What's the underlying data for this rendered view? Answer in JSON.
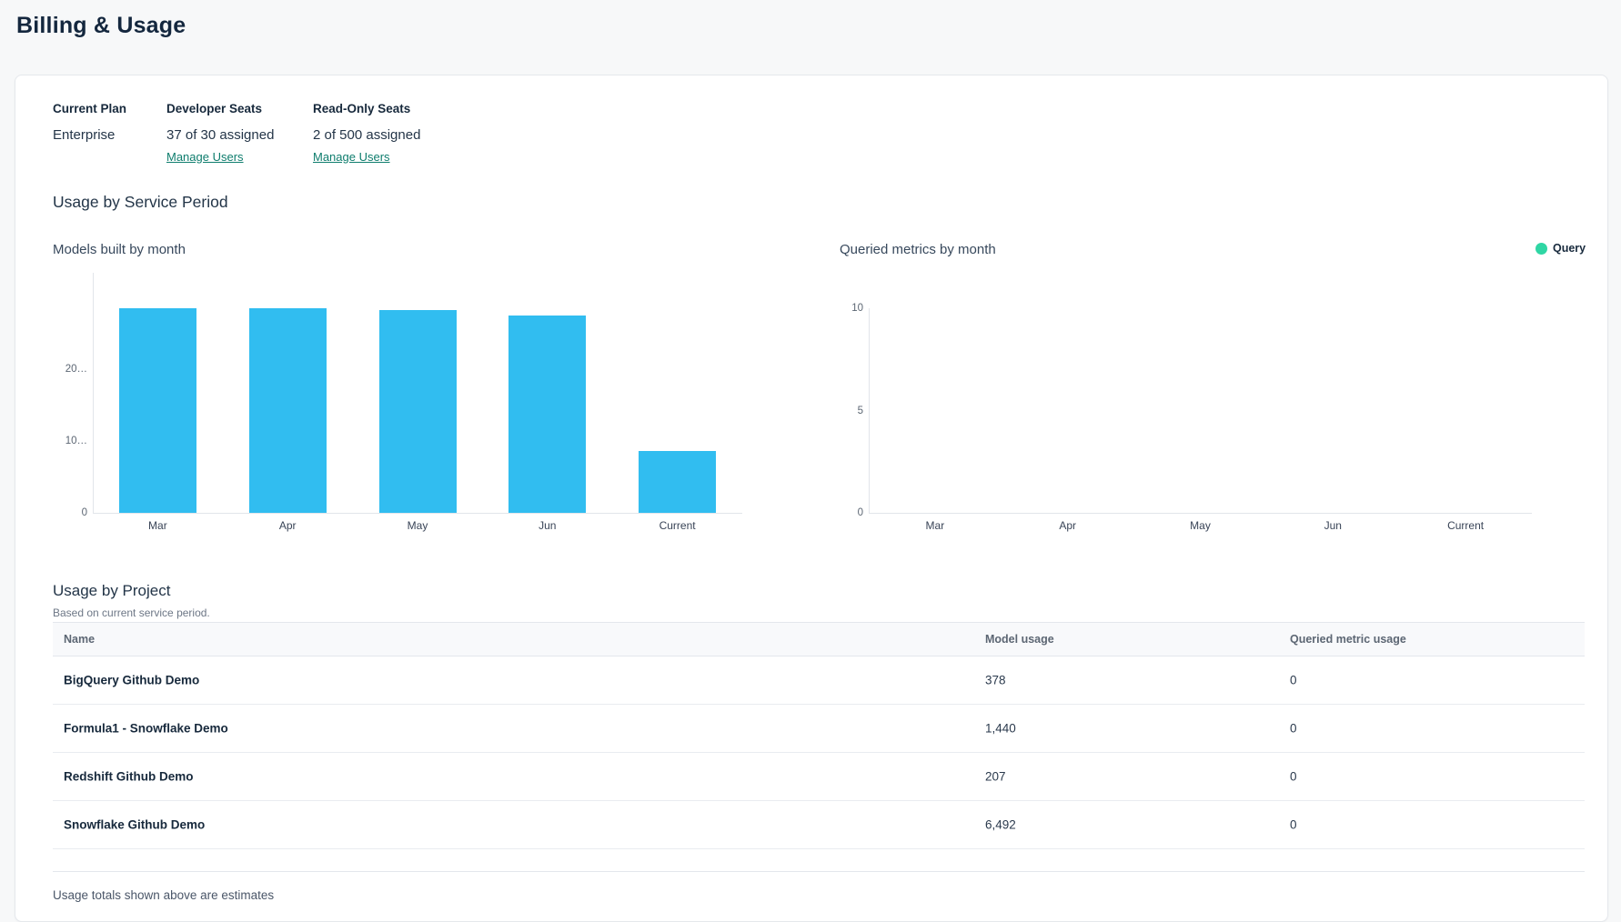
{
  "page": {
    "title": "Billing & Usage"
  },
  "plan": {
    "current_plan": {
      "label": "Current Plan",
      "value": "Enterprise"
    },
    "developer_seats": {
      "label": "Developer Seats",
      "value": "37 of 30 assigned",
      "link": "Manage Users"
    },
    "read_only_seats": {
      "label": "Read-Only Seats",
      "value": "2 of 500 assigned",
      "link": "Manage Users"
    }
  },
  "usage_section": {
    "title": "Usage by Service Period"
  },
  "chart_data": [
    {
      "type": "bar",
      "title": "Models built by month",
      "categories": [
        "Mar",
        "Apr",
        "May",
        "Jun",
        "Current"
      ],
      "values": [
        28600,
        28500,
        28300,
        27500,
        8600
      ],
      "values_note": "estimated from bar heights; y-axis labels truncated on screen",
      "ylim": [
        0,
        33500
      ],
      "yticks": [
        {
          "value": 0,
          "label": "0"
        },
        {
          "value": 10000,
          "label": "10…"
        },
        {
          "value": 20000,
          "label": "20…"
        }
      ],
      "bar_color": "#31bdf0",
      "grid": false,
      "legend_position": "none"
    },
    {
      "type": "bar",
      "title": "Queried metrics by month",
      "categories": [
        "Mar",
        "Apr",
        "May",
        "Jun",
        "Current"
      ],
      "values": [
        0,
        0,
        0,
        0,
        0
      ],
      "ylim": [
        0,
        10
      ],
      "yticks": [
        {
          "value": 0,
          "label": "0"
        },
        {
          "value": 5,
          "label": "5"
        },
        {
          "value": 10,
          "label": "10"
        }
      ],
      "grid": false,
      "legend_position": "top-right",
      "legend": [
        {
          "label": "Query",
          "color": "#2fd6a4"
        }
      ]
    }
  ],
  "project_table": {
    "title": "Usage by Project",
    "subtitle": "Based on current service period.",
    "columns": [
      "Name",
      "Model usage",
      "Queried metric usage"
    ],
    "rows": [
      {
        "name": "BigQuery Github Demo",
        "model_usage": "378",
        "queried_metric_usage": "0"
      },
      {
        "name": "Formula1 - Snowflake Demo",
        "model_usage": "1,440",
        "queried_metric_usage": "0"
      },
      {
        "name": "Redshift Github Demo",
        "model_usage": "207",
        "queried_metric_usage": "0"
      },
      {
        "name": "Snowflake Github Demo",
        "model_usage": "6,492",
        "queried_metric_usage": "0"
      }
    ],
    "footnote": "Usage totals shown above are estimates"
  },
  "colors": {
    "accent_bar": "#31bdf0",
    "accent_legend": "#2fd6a4",
    "link": "#0e7d6d",
    "heading": "#14273e",
    "page_bg": "#f7f8f9"
  }
}
